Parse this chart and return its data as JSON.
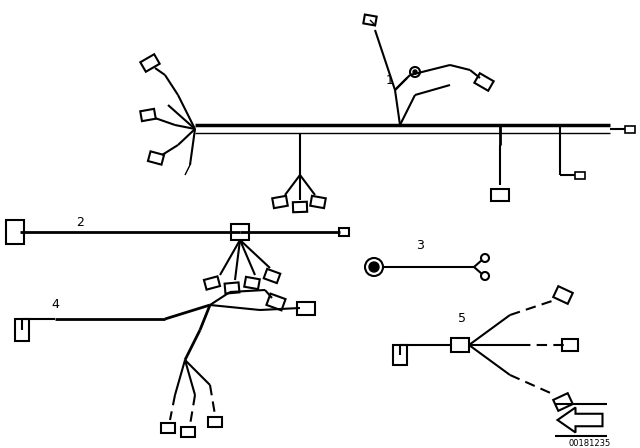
{
  "bg_color": "#ffffff",
  "line_color": "#000000",
  "part_number": "00181235",
  "lw": 1.5,
  "lw_thick": 3.0,
  "figsize": [
    6.4,
    4.48
  ],
  "dpi": 100,
  "label_fontsize": 9
}
